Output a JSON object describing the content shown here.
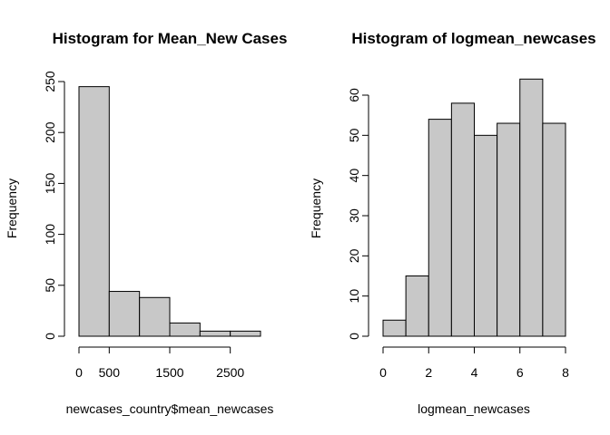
{
  "chart_data": [
    {
      "type": "bar",
      "title": "Histogram for Mean_New Cases",
      "xlabel": "newcases_country$mean_newcases",
      "ylabel": "Frequency",
      "bins": [
        {
          "from": 0,
          "to": 500,
          "count": 245
        },
        {
          "from": 500,
          "to": 1000,
          "count": 44
        },
        {
          "from": 1000,
          "to": 1500,
          "count": 38
        },
        {
          "from": 1500,
          "to": 2000,
          "count": 13
        },
        {
          "from": 2000,
          "to": 2500,
          "count": 5
        },
        {
          "from": 2500,
          "to": 3000,
          "count": 5
        }
      ],
      "xlim": [
        0,
        3000
      ],
      "ylim": [
        0,
        250
      ],
      "xticks": [
        0,
        500,
        1500,
        2500
      ],
      "yticks": [
        0,
        50,
        100,
        150,
        200,
        250
      ],
      "bar_color": "#c8c8c8",
      "grid": false
    },
    {
      "type": "bar",
      "title": "Histogram of logmean_newcases",
      "xlabel": "logmean_newcases",
      "ylabel": "Frequency",
      "bins": [
        {
          "from": 0,
          "to": 1,
          "count": 4
        },
        {
          "from": 1,
          "to": 2,
          "count": 15
        },
        {
          "from": 2,
          "to": 3,
          "count": 54
        },
        {
          "from": 3,
          "to": 4,
          "count": 58
        },
        {
          "from": 4,
          "to": 5,
          "count": 50
        },
        {
          "from": 5,
          "to": 6,
          "count": 53
        },
        {
          "from": 6,
          "to": 7,
          "count": 64
        },
        {
          "from": 7,
          "to": 8,
          "count": 53
        }
      ],
      "xlim": [
        0,
        8
      ],
      "ylim": [
        0,
        60
      ],
      "xticks": [
        0,
        2,
        4,
        6,
        8
      ],
      "yticks": [
        0,
        10,
        20,
        30,
        40,
        50,
        60
      ],
      "bar_color": "#c8c8c8",
      "grid": false
    }
  ]
}
